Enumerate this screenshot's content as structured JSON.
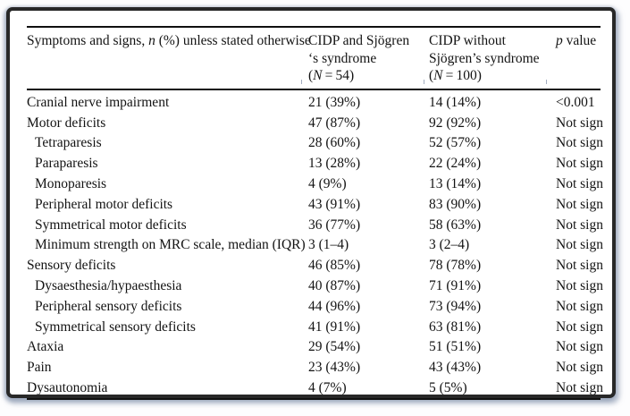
{
  "page": {
    "background_color": "#fdfdfe",
    "panel_background": "#ffffff",
    "panel_border_color": "#282828",
    "panel_shadow_color": "#7e8da8",
    "rule_color": "#101010",
    "text_color": "#131313"
  },
  "table": {
    "header": {
      "col1": {
        "parts": [
          {
            "t": "Symptoms and signs, "
          },
          {
            "t": "n",
            "i": true
          },
          {
            "t": " (%) unless stated otherwise"
          }
        ]
      },
      "col2": {
        "lines": [
          [
            {
              "t": "CIDP and Sjögren"
            }
          ],
          [
            {
              "t": "‘s syndrome"
            }
          ],
          [
            {
              "t": "("
            },
            {
              "t": "N",
              "i": true
            },
            {
              "t": " = 54)"
            }
          ]
        ]
      },
      "col3": {
        "lines": [
          [
            {
              "t": "CIDP without"
            }
          ],
          [
            {
              "t": "Sjögren’s syndrome"
            }
          ],
          [
            {
              "t": "("
            },
            {
              "t": "N",
              "i": true
            },
            {
              "t": " = 100)"
            }
          ]
        ]
      },
      "col4": {
        "parts": [
          {
            "t": "p",
            "i": true
          },
          {
            "t": " value"
          }
        ]
      }
    },
    "rows": [
      {
        "label": "Cranial nerve impairment",
        "indent": false,
        "cidp_sjogren": "21 (39%)",
        "cidp_without": "14 (14%)",
        "p_value": "<0.001"
      },
      {
        "label": "Motor deficits",
        "indent": false,
        "cidp_sjogren": "47 (87%)",
        "cidp_without": "92 (92%)",
        "p_value": "Not sign"
      },
      {
        "label": "Tetraparesis",
        "indent": true,
        "cidp_sjogren": "28 (60%)",
        "cidp_without": "52 (57%)",
        "p_value": "Not sign"
      },
      {
        "label": "Paraparesis",
        "indent": true,
        "cidp_sjogren": "13 (28%)",
        "cidp_without": "22 (24%)",
        "p_value": "Not sign"
      },
      {
        "label": "Monoparesis",
        "indent": true,
        "cidp_sjogren": "4 (9%)",
        "cidp_without": "13 (14%)",
        "p_value": "Not sign"
      },
      {
        "label": "Peripheral motor deficits",
        "indent": true,
        "cidp_sjogren": "43 (91%)",
        "cidp_without": "83 (90%)",
        "p_value": "Not sign"
      },
      {
        "label": "Symmetrical motor deficits",
        "indent": true,
        "cidp_sjogren": "36 (77%)",
        "cidp_without": "58 (63%)",
        "p_value": "Not sign"
      },
      {
        "label": "Minimum strength on MRC scale, median (IQR)",
        "indent": true,
        "cidp_sjogren": "3 (1–4)",
        "cidp_without": "3 (2–4)",
        "p_value": "Not sign"
      },
      {
        "label": "Sensory deficits",
        "indent": false,
        "cidp_sjogren": "46 (85%)",
        "cidp_without": "78 (78%)",
        "p_value": "Not sign"
      },
      {
        "label": "Dysaesthesia/hypaesthesia",
        "indent": true,
        "cidp_sjogren": "40 (87%)",
        "cidp_without": "71 (91%)",
        "p_value": "Not sign"
      },
      {
        "label": "Peripheral sensory deficits",
        "indent": true,
        "cidp_sjogren": "44 (96%)",
        "cidp_without": "73 (94%)",
        "p_value": "Not sign"
      },
      {
        "label": "Symmetrical sensory deficits",
        "indent": true,
        "cidp_sjogren": "41 (91%)",
        "cidp_without": "63 (81%)",
        "p_value": "Not sign"
      },
      {
        "label": "Ataxia",
        "indent": false,
        "cidp_sjogren": "29 (54%)",
        "cidp_without": "51 (51%)",
        "p_value": "Not sign"
      },
      {
        "label": "Pain",
        "indent": false,
        "cidp_sjogren": "23 (43%)",
        "cidp_without": "43 (43%)",
        "p_value": "Not sign"
      },
      {
        "label": "Dysautonomia",
        "indent": false,
        "cidp_sjogren": "4 (7%)",
        "cidp_without": "5 (5%)",
        "p_value": "Not sign"
      }
    ]
  }
}
